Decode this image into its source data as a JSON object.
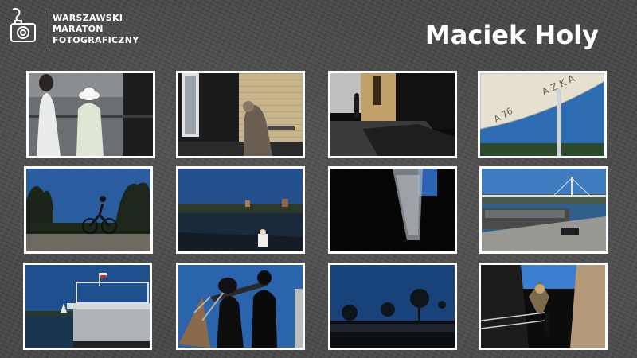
{
  "logo": {
    "line1": "WARSZAWSKI",
    "line2": "MARATON",
    "line3": "FOTOGRAFICZNY",
    "icon": "camera-mermaid-icon"
  },
  "header": {
    "title": "Maciek Holy"
  },
  "photos": [
    {
      "name": "photo-women-white-dresses"
    },
    {
      "name": "photo-woman-sitting-doorway"
    },
    {
      "name": "photo-street-corner-shadow"
    },
    {
      "name": "photo-umbrella-sky"
    },
    {
      "name": "photo-cyclist-silhouette"
    },
    {
      "name": "photo-river-skyline"
    },
    {
      "name": "photo-dark-window-light"
    },
    {
      "name": "photo-bridge-boats"
    },
    {
      "name": "photo-houseboat-flag"
    },
    {
      "name": "photo-silhouettes-crane"
    },
    {
      "name": "photo-crowd-trees-dusk"
    },
    {
      "name": "photo-stairway-statue"
    }
  ]
}
